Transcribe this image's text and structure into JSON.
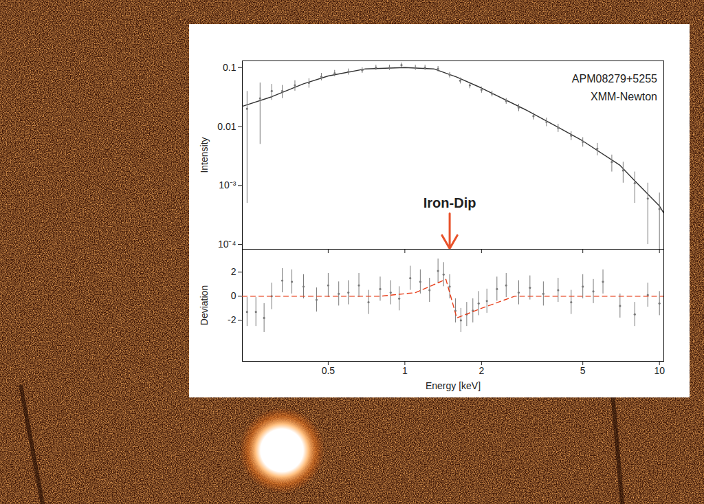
{
  "chart_data": [
    {
      "type": "line",
      "log": true,
      "y_label": "Intensity",
      "tick_labels": "y",
      "xlim": [
        0.23,
        10.4
      ],
      "xticks": [
        0.5,
        1,
        2,
        5,
        10
      ],
      "ylim": [
        8.3e-05,
        0.13
      ],
      "yticks": [
        0.1,
        0.01,
        {
          "value": 0.001,
          "label": "10⁻³"
        },
        {
          "value": 0.0001,
          "label": "10⁻⁴"
        }
      ],
      "series": [
        {
          "type": "line",
          "color": "#333333",
          "x": [
            0.23,
            0.3,
            0.4,
            0.5,
            0.7,
            1.0,
            1.3,
            1.6,
            2,
            3,
            4,
            5,
            7,
            8,
            10,
            10.4
          ],
          "values": [
            0.022,
            0.032,
            0.053,
            0.072,
            0.095,
            0.1,
            0.095,
            0.069,
            0.045,
            0.019,
            0.0097,
            0.0057,
            0.0022,
            0.0012,
            0.00045,
            0.00034
          ]
        },
        {
          "type": "scatter",
          "color": "#7a7a7a",
          "marker": "point",
          "x": [
            0.24,
            0.27,
            0.3,
            0.33,
            0.37,
            0.42,
            0.47,
            0.53,
            0.6,
            0.68,
            0.77,
            0.87,
            0.97,
            1.1,
            1.2,
            1.35,
            1.5,
            1.65,
            1.8,
            2.0,
            2.2,
            2.5,
            2.8,
            3.2,
            3.6,
            4.0,
            4.5,
            5.0,
            5.7,
            6.5,
            7.2,
            8.0,
            9.0,
            10.0
          ],
          "values": [
            0.02,
            0.03,
            0.04,
            0.04,
            0.05,
            0.055,
            0.07,
            0.08,
            0.085,
            0.09,
            0.1,
            0.1,
            0.11,
            0.1,
            0.1,
            0.095,
            0.075,
            0.06,
            0.05,
            0.042,
            0.036,
            0.027,
            0.021,
            0.015,
            0.012,
            0.0095,
            0.007,
            0.0055,
            0.0042,
            0.0025,
            0.0018,
            0.0011,
            0.0006,
            0.0004
          ],
          "errors": [
            0.0195,
            0.025,
            0.012,
            0.01,
            0.01,
            0.01,
            0.01,
            0.01,
            0.01,
            0.01,
            0.01,
            0.01,
            0.01,
            0.01,
            0.01,
            0.01,
            0.008,
            0.007,
            0.006,
            0.005,
            0.004,
            0.003,
            0.003,
            0.002,
            0.002,
            0.0015,
            0.0012,
            0.001,
            0.001,
            0.0008,
            0.0007,
            0.0006,
            0.0005,
            0.00035
          ]
        }
      ],
      "annotations": [
        {
          "text": "APM08279+5255",
          "x": 9.8,
          "y": 0.064
        },
        {
          "text": "XMM-Newton",
          "x": 9.8,
          "y": 0.032
        }
      ],
      "arrow_annotations": [
        {
          "text": "Iron-Dip",
          "x": 1.5,
          "y": 0.0005,
          "color": "#e8522a"
        }
      ]
    },
    {
      "type": "line",
      "log": "x",
      "x_label": "Energy [keV]",
      "y_label": "Deviation",
      "xlim": [
        0.23,
        10.4
      ],
      "xticks": [
        0.5,
        1,
        2,
        5,
        10
      ],
      "ylim": [
        -5.4,
        3.9
      ],
      "yticks": [
        -2,
        0,
        2
      ],
      "series": [
        {
          "type": "scatter",
          "color": "#7a7a7a",
          "marker": "point",
          "x": [
            0.24,
            0.26,
            0.28,
            0.3,
            0.33,
            0.36,
            0.4,
            0.45,
            0.5,
            0.55,
            0.6,
            0.66,
            0.72,
            0.8,
            0.88,
            0.95,
            1.05,
            1.15,
            1.25,
            1.35,
            1.42,
            1.5,
            1.58,
            1.66,
            1.75,
            1.85,
            1.95,
            2.1,
            2.3,
            2.5,
            2.8,
            3.1,
            3.5,
            4.0,
            4.5,
            5.0,
            5.5,
            6.0,
            7.0,
            8.0,
            9.0,
            10.0
          ],
          "values": [
            -1.3,
            -1.3,
            -1.8,
            0,
            1.3,
            1.2,
            0.8,
            -0.3,
            0.9,
            0.2,
            0.3,
            0.9,
            -0.5,
            0.6,
            0.3,
            -0.2,
            1.5,
            1.2,
            0.5,
            2.1,
            1.8,
            0.8,
            -1.2,
            -2,
            -1.5,
            -1.2,
            -0.6,
            -0.4,
            0.6,
            0.9,
            0.3,
            0.7,
            0.2,
            0.5,
            -0.5,
            0.8,
            0.4,
            1.2,
            -0.8,
            -1.5,
            0.1,
            -0.6
          ],
          "errors": [
            1.2,
            1.2,
            1.2,
            1.1,
            1.0,
            1.0,
            1.0,
            1.0,
            1.0,
            1.0,
            1.0,
            1.0,
            1.0,
            1.0,
            1.0,
            1.0,
            1.0,
            1.0,
            1.0,
            1.0,
            1.0,
            1.0,
            1.0,
            1.0,
            1.0,
            1.0,
            1.0,
            1.0,
            1.0,
            1.0,
            1.0,
            1.0,
            1.0,
            1.0,
            1.0,
            1.0,
            1.0,
            1.0,
            1.0,
            1.0,
            1.0,
            1.0
          ]
        },
        {
          "type": "line",
          "color": "#e8401c",
          "line_style": "dashed",
          "x": [
            0.23,
            0.8,
            1.1,
            1.45,
            1.6,
            2.0,
            2.7,
            10.4
          ],
          "values": [
            0,
            0,
            0.3,
            1.4,
            -1.8,
            -1.0,
            0,
            0
          ]
        }
      ]
    }
  ]
}
